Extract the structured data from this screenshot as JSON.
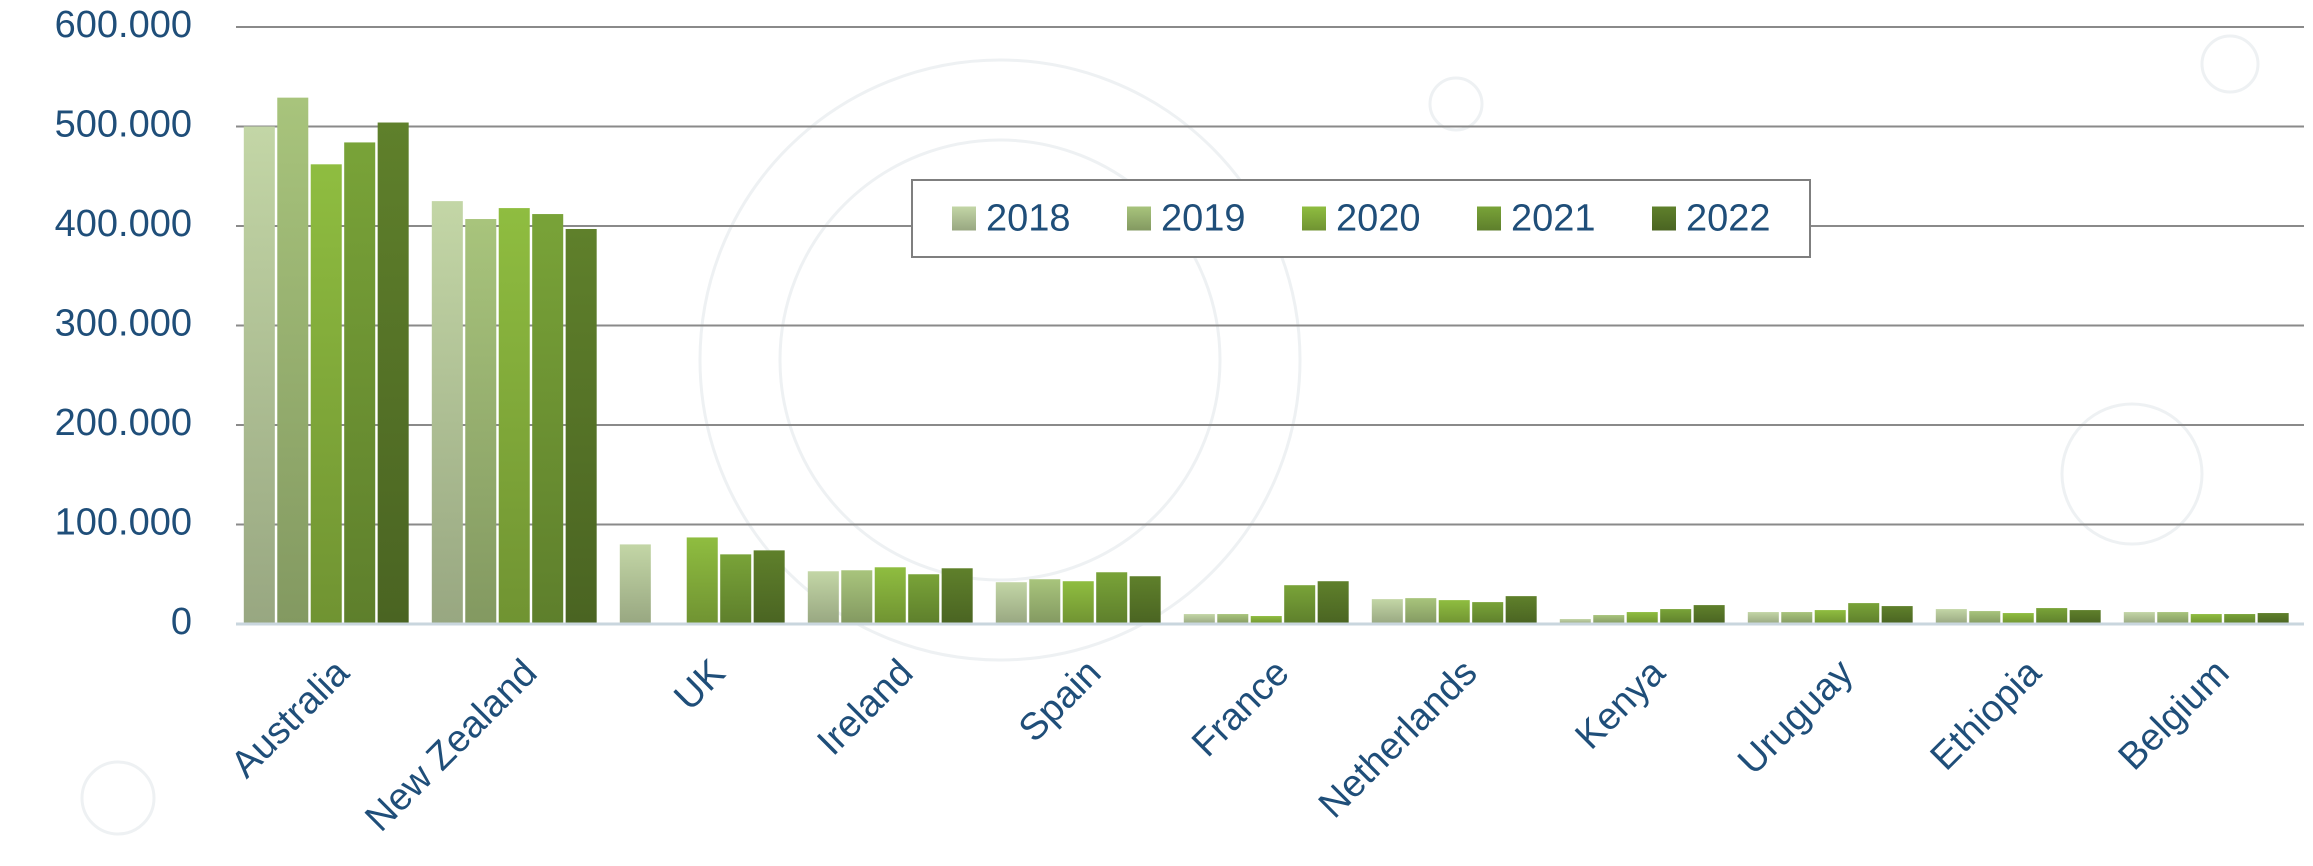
{
  "chart_data": {
    "type": "bar",
    "categories": [
      "Australia",
      "New Zealand",
      "UK",
      "Ireland",
      "Spain",
      "France",
      "Netherlands",
      "Kenya",
      "Uruguay",
      "Ethiopia",
      "Belgium"
    ],
    "series": [
      {
        "name": "2018",
        "color": "#c3d6a6",
        "values": [
          500000,
          425000,
          80000,
          53000,
          42000,
          10000,
          25000,
          5000,
          12000,
          15000,
          12000
        ]
      },
      {
        "name": "2019",
        "color": "#a8c47c",
        "values": [
          529000,
          407000,
          null,
          54000,
          45000,
          10000,
          26000,
          9000,
          12000,
          13000,
          12000
        ]
      },
      {
        "name": "2020",
        "color": "#8fbd40",
        "values": [
          462000,
          418000,
          87000,
          57000,
          43000,
          8000,
          24000,
          12000,
          14000,
          11000,
          10000
        ]
      },
      {
        "name": "2021",
        "color": "#79a338",
        "values": [
          484000,
          412000,
          70000,
          50000,
          52000,
          39000,
          22000,
          15000,
          21000,
          16000,
          10000
        ]
      },
      {
        "name": "2022",
        "color": "#5f802b",
        "values": [
          504000,
          397000,
          74000,
          56000,
          48000,
          43000,
          28000,
          19000,
          18000,
          14000,
          11000
        ]
      }
    ],
    "ylim": [
      0,
      600000
    ],
    "yticks": [
      0,
      {
        "value": 100000,
        "label": "100.000"
      },
      {
        "value": 200000,
        "label": "200.000"
      },
      {
        "value": 300000,
        "label": "300.000"
      },
      {
        "value": 400000,
        "label": "400.000"
      },
      {
        "value": 500000,
        "label": "500.000"
      },
      {
        "value": 600000,
        "label": "600.000"
      }
    ],
    "grid": true,
    "legend": "top"
  }
}
